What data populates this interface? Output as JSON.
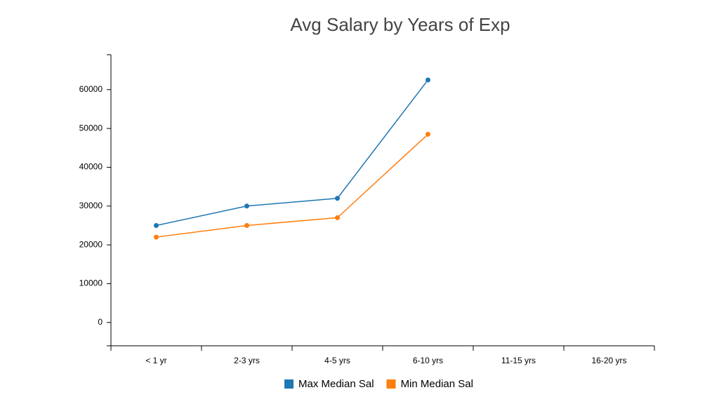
{
  "chart_data": {
    "type": "line",
    "title": "Avg Salary by Years of Exp",
    "categories": [
      "< 1 yr",
      "2-3 yrs",
      "4-5 yrs",
      "6-10 yrs",
      "11-15 yrs",
      "16-20 yrs"
    ],
    "series": [
      {
        "name": "Max Median Sal",
        "color": "#1f77b4",
        "values": [
          25000,
          30000,
          32000,
          62500,
          null,
          null
        ]
      },
      {
        "name": "Min Median Sal",
        "color": "#ff7f0e",
        "values": [
          22000,
          25000,
          27000,
          48500,
          null,
          null
        ]
      }
    ],
    "ylim": [
      -6000,
      69000
    ],
    "yticks": [
      0,
      10000,
      20000,
      30000,
      40000,
      50000,
      60000
    ]
  }
}
